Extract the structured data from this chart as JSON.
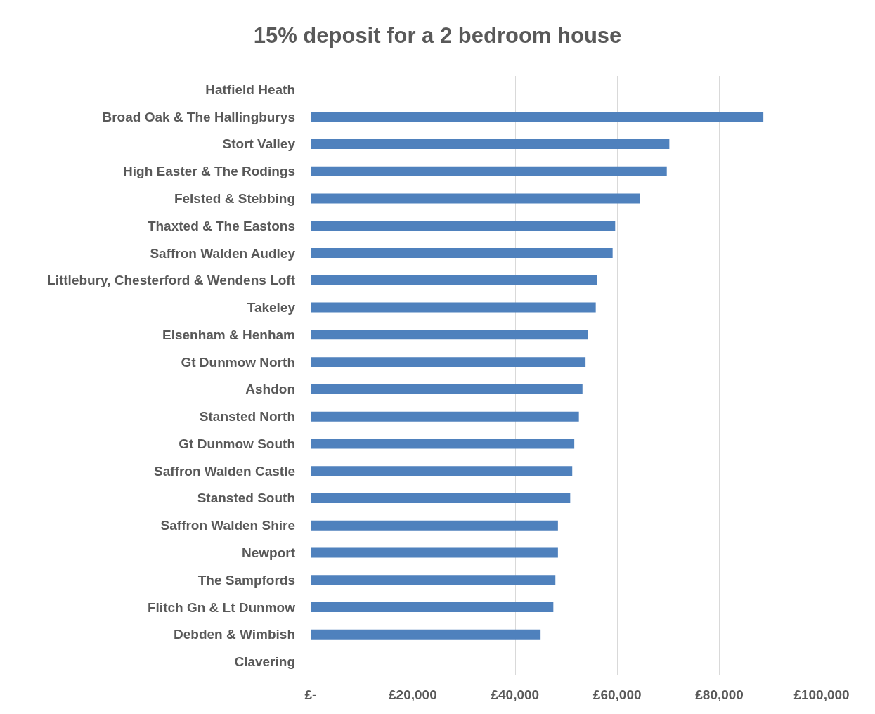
{
  "chart_data": {
    "type": "bar",
    "orientation": "horizontal",
    "title": "15% deposit for a 2 bedroom house",
    "categories": [
      "Hatfield Heath",
      "Broad Oak & The Hallingburys",
      "Stort Valley",
      "High Easter & The Rodings",
      "Felsted & Stebbing",
      "Thaxted & The Eastons",
      "Saffron Walden Audley",
      "Littlebury, Chesterford & Wendens Loft",
      "Takeley",
      "Elsenham & Henham",
      "Gt Dunmow North",
      "Ashdon",
      "Stansted North",
      "Gt Dunmow South",
      "Saffron Walden Castle",
      "Stansted South",
      "Saffron Walden Shire",
      "Newport",
      "The Sampfords",
      "Flitch Gn & Lt Dunmow",
      "Debden & Wimbish",
      "Clavering"
    ],
    "values": [
      null,
      88600,
      70200,
      69700,
      64500,
      59600,
      59100,
      56000,
      55800,
      54300,
      53800,
      53200,
      52500,
      51600,
      51200,
      50800,
      48400,
      48400,
      47900,
      47500,
      45000,
      null
    ],
    "color": "#4f81bd",
    "xlim": [
      0,
      100000
    ],
    "xticks": [
      {
        "value": 0,
        "label": "£-"
      },
      {
        "value": 20000,
        "label": "£20,000"
      },
      {
        "value": 40000,
        "label": "£40,000"
      },
      {
        "value": 60000,
        "label": "£60,000"
      },
      {
        "value": 80000,
        "label": "£80,000"
      },
      {
        "value": 100000,
        "label": "£100,000"
      }
    ],
    "grid": "x"
  }
}
